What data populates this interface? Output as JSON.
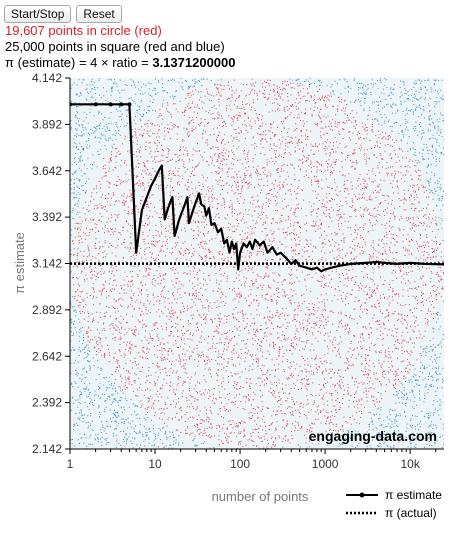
{
  "controls": {
    "start_stop_label": "Start/Stop",
    "reset_label": "Reset"
  },
  "stats": {
    "circle_text": "19,607 points in circle (red)",
    "square_text": "25,000 points in square (red and blue)",
    "pi_text_prefix": "π (estimate) = 4 × ratio = ",
    "pi_value": "3.1371200000"
  },
  "colors": {
    "inside": "#d6262f",
    "outside": "#3a8fb8",
    "estimate_line": "#000000",
    "actual_line": "#000000"
  },
  "watermark": "engaging-data.com",
  "chart_data": {
    "type": "line",
    "xlabel": "number of points",
    "ylabel": "π estimate",
    "x_scale": "log",
    "xlim": [
      1,
      25000
    ],
    "ylim": [
      2.142,
      4.142
    ],
    "x_ticks": [
      {
        "value": 1,
        "label": "1"
      },
      {
        "value": 10,
        "label": "10"
      },
      {
        "value": 100,
        "label": "100"
      },
      {
        "value": 1000,
        "label": "1000"
      },
      {
        "value": 10000,
        "label": "10k"
      }
    ],
    "y_ticks": [
      {
        "value": 2.142,
        "label": "2.142"
      },
      {
        "value": 2.392,
        "label": "2.392"
      },
      {
        "value": 2.642,
        "label": "2.642"
      },
      {
        "value": 2.892,
        "label": "2.892"
      },
      {
        "value": 3.142,
        "label": "3.142"
      },
      {
        "value": 3.392,
        "label": "3.392"
      },
      {
        "value": 3.642,
        "label": "3.642"
      },
      {
        "value": 3.892,
        "label": "3.892"
      },
      {
        "value": 4.142,
        "label": "4.142"
      }
    ],
    "legend": {
      "position": "bottom-right"
    },
    "series": [
      {
        "name": "π estimate",
        "style": "solid",
        "points": [
          [
            1,
            4.0
          ],
          [
            2,
            4.0
          ],
          [
            3,
            4.0
          ],
          [
            4,
            4.0
          ],
          [
            5,
            4.0
          ],
          [
            6,
            3.2
          ],
          [
            7,
            3.43
          ],
          [
            8,
            3.5
          ],
          [
            9,
            3.56
          ],
          [
            10,
            3.6
          ],
          [
            11,
            3.64
          ],
          [
            12,
            3.67
          ],
          [
            13,
            3.38
          ],
          [
            14,
            3.43
          ],
          [
            15,
            3.47
          ],
          [
            16,
            3.5
          ],
          [
            17,
            3.29
          ],
          [
            18,
            3.33
          ],
          [
            19,
            3.37
          ],
          [
            20,
            3.4
          ],
          [
            22,
            3.45
          ],
          [
            24,
            3.5
          ],
          [
            25,
            3.36
          ],
          [
            28,
            3.43
          ],
          [
            30,
            3.47
          ],
          [
            33,
            3.52
          ],
          [
            35,
            3.46
          ],
          [
            38,
            3.45
          ],
          [
            40,
            3.4
          ],
          [
            43,
            3.44
          ],
          [
            46,
            3.35
          ],
          [
            50,
            3.36
          ],
          [
            55,
            3.31
          ],
          [
            60,
            3.33
          ],
          [
            65,
            3.25
          ],
          [
            70,
            3.27
          ],
          [
            75,
            3.2
          ],
          [
            80,
            3.26
          ],
          [
            85,
            3.22
          ],
          [
            90,
            3.25
          ],
          [
            95,
            3.11
          ],
          [
            100,
            3.2
          ],
          [
            110,
            3.25
          ],
          [
            120,
            3.23
          ],
          [
            130,
            3.26
          ],
          [
            140,
            3.22
          ],
          [
            150,
            3.27
          ],
          [
            170,
            3.24
          ],
          [
            190,
            3.26
          ],
          [
            210,
            3.2
          ],
          [
            240,
            3.23
          ],
          [
            270,
            3.19
          ],
          [
            300,
            3.2
          ],
          [
            350,
            3.17
          ],
          [
            400,
            3.14
          ],
          [
            450,
            3.16
          ],
          [
            500,
            3.13
          ],
          [
            600,
            3.12
          ],
          [
            700,
            3.11
          ],
          [
            800,
            3.12
          ],
          [
            900,
            3.1
          ],
          [
            1000,
            3.11
          ],
          [
            1200,
            3.12
          ],
          [
            1500,
            3.13
          ],
          [
            2000,
            3.14
          ],
          [
            3000,
            3.145
          ],
          [
            4000,
            3.15
          ],
          [
            5000,
            3.145
          ],
          [
            7000,
            3.14
          ],
          [
            10000,
            3.145
          ],
          [
            15000,
            3.14
          ],
          [
            20000,
            3.138
          ],
          [
            25000,
            3.137
          ]
        ]
      },
      {
        "name": "π (actual)",
        "style": "dotted",
        "points": [
          [
            1,
            3.1416
          ],
          [
            25000,
            3.1416
          ]
        ]
      }
    ]
  }
}
